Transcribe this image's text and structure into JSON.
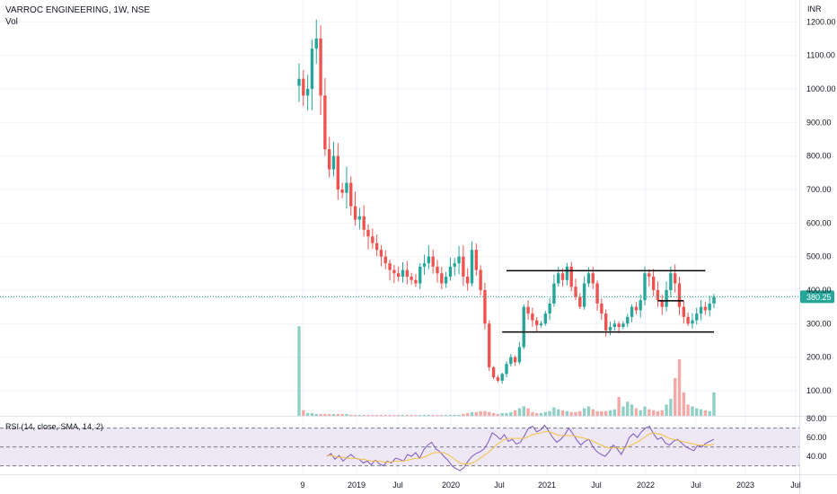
{
  "header": {
    "title": "VARROC ENGINEERING, 1W, NSE",
    "volume_label": "Vol",
    "rsi_label": "RSI (14, close, SMA, 14, 2)"
  },
  "currency": "INR",
  "price_label": "380.25",
  "colors": {
    "up": "#26a69a",
    "down": "#ef5350",
    "volume_up": "#8fd0c6",
    "volume_down": "#f4a9a7",
    "rsi_line": "#7e57c2",
    "rsi_sma": "#f5c242",
    "rsi_band": "#ede7f6",
    "current_price": "#26a69a",
    "trend_lines": "#000000"
  },
  "chart_data": [
    {
      "type": "candlestick",
      "title": "VARROC ENGINEERING, 1W, NSE",
      "ylabel": "INR",
      "y_ticks": [
        100,
        200,
        300,
        400,
        500,
        600,
        700,
        800,
        900,
        1000,
        1100,
        1200
      ],
      "y_tick_labels": [
        "100.00",
        "200.00",
        "300.00",
        "400.00",
        "500.00",
        "600.00",
        "700.00",
        "800.00",
        "900.00",
        "1000.00",
        "1100.00",
        "1200.00"
      ],
      "x_tick_labels": [
        "9",
        "2019",
        "Jul",
        "2020",
        "Jul",
        "2021",
        "Jul",
        "2022",
        "Jul",
        "2023",
        "Jul"
      ],
      "ylim": [
        25,
        1265
      ],
      "current_price": 380.25,
      "close_series": [
        1030,
        980,
        1000,
        1120,
        1150,
        980,
        820,
        760,
        800,
        700,
        690,
        720,
        650,
        610,
        620,
        580,
        560,
        540,
        520,
        500,
        480,
        460,
        450,
        440,
        460,
        440,
        430,
        420,
        470,
        480,
        500,
        470,
        450,
        420,
        440,
        470,
        480,
        500,
        440,
        420,
        520,
        460,
        400,
        300,
        170,
        140,
        130,
        150,
        180,
        200,
        185,
        230,
        350,
        330,
        310,
        295,
        300,
        330,
        360,
        420,
        450,
        430,
        470,
        410,
        380,
        350,
        420,
        450,
        420,
        360,
        330,
        280,
        290,
        300,
        290,
        300,
        320,
        350,
        340,
        370,
        450,
        440,
        400,
        370,
        350,
        400,
        450,
        420,
        350,
        320,
        300,
        310,
        330,
        350,
        340,
        360,
        380
      ],
      "trend_lines": [
        {
          "from_index": 48,
          "to_index": 94,
          "price": 458
        },
        {
          "from_index": 47,
          "to_index": 96,
          "price": 275
        },
        {
          "from_index": 83,
          "to_index": 89,
          "price": 368
        }
      ]
    },
    {
      "type": "bar",
      "title": "Vol",
      "values_relative": [
        0.95,
        0.06,
        0.03,
        0.03,
        0.02,
        0.02,
        0.02,
        0.02,
        0.02,
        0.02,
        0.02,
        0.02,
        0.01,
        0.01,
        0.01,
        0.01,
        0.01,
        0.01,
        0.01,
        0.01,
        0.01,
        0.01,
        0.01,
        0.01,
        0.01,
        0.01,
        0.01,
        0.01,
        0.01,
        0.01,
        0.01,
        0.01,
        0.01,
        0.01,
        0.01,
        0.01,
        0.01,
        0.01,
        0.02,
        0.03,
        0.04,
        0.04,
        0.05,
        0.05,
        0.04,
        0.03,
        0.02,
        0.03,
        0.03,
        0.04,
        0.06,
        0.08,
        0.1,
        0.08,
        0.04,
        0.03,
        0.03,
        0.04,
        0.05,
        0.09,
        0.07,
        0.06,
        0.05,
        0.04,
        0.04,
        0.05,
        0.08,
        0.1,
        0.07,
        0.05,
        0.05,
        0.05,
        0.06,
        0.07,
        0.2,
        0.1,
        0.15,
        0.12,
        0.08,
        0.06,
        0.1,
        0.07,
        0.06,
        0.05,
        0.06,
        0.12,
        0.18,
        0.4,
        0.6,
        0.25,
        0.12,
        0.1,
        0.08,
        0.07,
        0.06,
        0.05,
        0.25
      ]
    },
    {
      "type": "line",
      "title": "RSI (14, close, SMA, 14, 2)",
      "y_ticks": [
        40,
        60,
        80
      ],
      "y_tick_labels": [
        "40.00",
        "60.00",
        "80.00"
      ],
      "bands": [
        30,
        50,
        70
      ],
      "ylim": [
        22,
        82
      ],
      "series": [
        {
          "name": "RSI",
          "values": [
            40,
            43,
            37,
            41,
            35,
            39,
            42,
            38,
            37,
            33,
            35,
            31,
            36,
            32,
            30,
            35,
            33,
            38,
            37,
            35,
            42,
            40,
            44,
            38,
            47,
            52,
            55,
            48,
            45,
            40,
            36,
            30,
            27,
            25,
            28,
            35,
            40,
            43,
            45,
            48,
            55,
            65,
            62,
            58,
            63,
            56,
            58,
            53,
            55,
            62,
            70,
            72,
            66,
            68,
            73,
            67,
            60,
            55,
            58,
            63,
            70,
            64,
            57,
            52,
            56,
            58,
            50,
            45,
            42,
            40,
            45,
            52,
            48,
            42,
            50,
            60,
            64,
            60,
            66,
            70,
            72,
            64,
            58,
            60,
            54,
            52,
            56,
            58,
            54,
            50,
            48,
            46,
            52,
            50,
            54,
            56,
            58
          ]
        },
        {
          "name": "SMA",
          "values": [
            41,
            41,
            40,
            39,
            39,
            38,
            38,
            38,
            37,
            37,
            36,
            35,
            35,
            35,
            34,
            34,
            34,
            35,
            35,
            35,
            36,
            37,
            38,
            38,
            39,
            41,
            43,
            44,
            44,
            44,
            42,
            39,
            36,
            33,
            32,
            32,
            33,
            35,
            38,
            41,
            44,
            48,
            52,
            55,
            58,
            59,
            59,
            59,
            59,
            59,
            61,
            63,
            64,
            65,
            66,
            66,
            65,
            63,
            62,
            62,
            62,
            62,
            61,
            60,
            59,
            58,
            56,
            54,
            52,
            50,
            49,
            49,
            49,
            48,
            49,
            51,
            53,
            55,
            58,
            61,
            64,
            65,
            64,
            63,
            61,
            59,
            58,
            57,
            56,
            55,
            54,
            53,
            52,
            52,
            52,
            52,
            53
          ]
        }
      ]
    }
  ]
}
